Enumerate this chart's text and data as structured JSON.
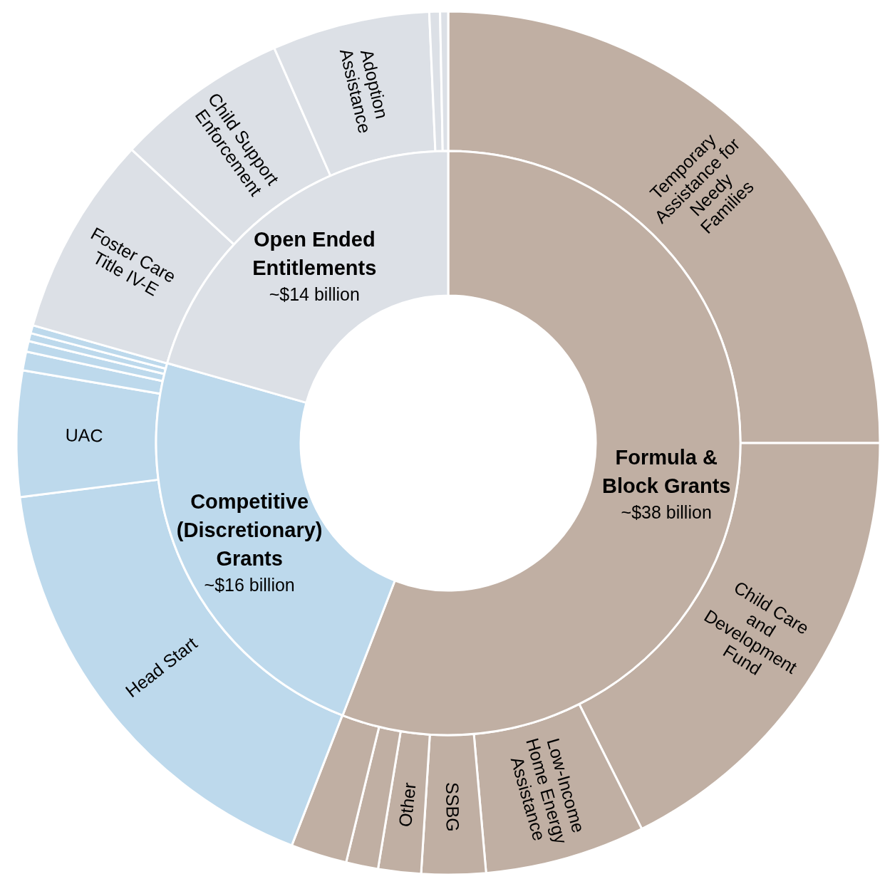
{
  "chart_data": [
    {
      "type": "donut",
      "categories": [
        "Formula & Block Grants",
        "Competitive (Discretionary) Grants",
        "Open Ended Entitlements"
      ],
      "values": [
        38,
        16,
        14
      ],
      "value_labels": [
        "~$38 billion",
        "~$16 billion",
        "~$14 billion"
      ],
      "colors": [
        "#c0afa3",
        "#bdd9ec",
        "#dce0e6"
      ]
    },
    {
      "type": "donut",
      "categories": [
        "Temporary Assistance for Needy Families",
        "Child Care and Development Fund",
        "Low-Income Home Energy Assistance",
        "SSBG",
        "Other",
        null,
        null,
        "Head Start",
        "UAC",
        null,
        null,
        null,
        null,
        "Foster Care Title IV-E",
        "Child Support Enforcement",
        "Adoption Assistance",
        null,
        null
      ],
      "values": [
        25.0,
        17.6,
        6.0,
        2.4,
        1.6,
        1.2,
        2.1,
        17.1,
        4.7,
        0.7,
        0.4,
        0.3,
        0.3,
        7.5,
        6.5,
        5.9,
        0.4,
        0.3
      ],
      "colors": [
        "#c0afa3",
        "#c0afa3",
        "#c0afa3",
        "#c0afa3",
        "#c0afa3",
        "#c0afa3",
        "#c0afa3",
        "#bdd9ec",
        "#bdd9ec",
        "#bdd9ec",
        "#bdd9ec",
        "#bdd9ec",
        "#bdd9ec",
        "#dce0e6",
        "#dce0e6",
        "#dce0e6",
        "#dce0e6",
        "#dce0e6"
      ]
    }
  ]
}
